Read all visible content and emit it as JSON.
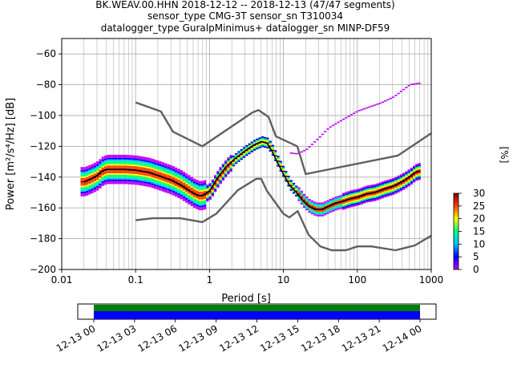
{
  "title_lines": [
    "BK.WEAV.00.HHN   2018-12-12 -- 2018-12-13  (47/47 segments)",
    "sensor_type CMG-3T sensor_sn T310034",
    "datalogger_type GuralpMinimus+ datalogger_sn MINP-DF59"
  ],
  "colors": {
    "model_lines": "#606060",
    "mode_line": "#000000",
    "grid": "#b0b0b0",
    "coverage_green": "#008000",
    "coverage_blue": "#0000ff",
    "colormap_stops": [
      "#ffffff",
      "#c000ff",
      "#0000ff",
      "#00c0ff",
      "#00ff80",
      "#ffff00",
      "#ff4000",
      "#800000"
    ]
  },
  "chart_data": [
    {
      "type": "heatmap",
      "xlabel": "Period [s]",
      "ylabel": "Power [m²/s⁴/Hz] [dB]",
      "x_scale": "log",
      "xlim": [
        0.01,
        1000
      ],
      "ylim": [
        -200,
        -50
      ],
      "x_ticks": [
        "0.01",
        "0.1",
        "1",
        "10",
        "100",
        "1000"
      ],
      "y_ticks": [
        "−200",
        "−180",
        "−160",
        "−140",
        "−120",
        "−100",
        "−80",
        "−60"
      ],
      "y_tick_values": [
        -200,
        -180,
        -160,
        -140,
        -120,
        -100,
        -80,
        -60
      ],
      "grid": true,
      "colorbar": {
        "label": "[%]",
        "range": [
          0,
          30
        ],
        "ticks": [
          "0",
          "5",
          "10",
          "15",
          "20",
          "25",
          "30"
        ],
        "tick_values": [
          0,
          5,
          10,
          15,
          20,
          25,
          30
        ]
      },
      "series": [
        {
          "role": "new-high-noise-model",
          "x": [
            0.1,
            0.22,
            0.32,
            0.8,
            3.8,
            4.6,
            6.3,
            7.9,
            15.4,
            20,
            354.8,
            1000
          ],
          "y": [
            -91.5,
            -97.4,
            -110.5,
            -120,
            -98,
            -96.5,
            -101,
            -113.5,
            -120,
            -138,
            -126,
            -111.5
          ]
        },
        {
          "role": "new-low-noise-model",
          "x": [
            0.1,
            0.17,
            0.4,
            0.8,
            1.24,
            2.4,
            4.3,
            5,
            6,
            10,
            12,
            15.6,
            21.9,
            31.6,
            45,
            70,
            101,
            154,
            328,
            600,
            1000
          ],
          "y": [
            -168,
            -166.7,
            -166.7,
            -169.2,
            -163.7,
            -148.6,
            -141.1,
            -141.1,
            -149,
            -163.8,
            -166.2,
            -162.1,
            -177.5,
            -185,
            -187.5,
            -187.5,
            -185,
            -185,
            -187.5,
            -184.4,
            -178
          ]
        },
        {
          "role": "mode",
          "x": [
            0.02,
            0.025,
            0.03,
            0.035,
            0.04,
            0.05,
            0.07,
            0.1,
            0.15,
            0.2,
            0.3,
            0.4,
            0.5,
            0.6,
            0.7,
            0.8,
            1,
            1.3,
            1.7,
            2.2,
            3,
            4,
            5,
            6,
            7,
            8,
            10,
            12,
            15,
            18,
            22,
            27,
            33,
            40,
            50,
            60,
            80,
            100,
            130,
            170,
            220,
            300,
            400,
            500,
            600,
            700
          ],
          "y": [
            -143,
            -141,
            -139,
            -136,
            -135,
            -135,
            -135,
            -135.5,
            -137,
            -139,
            -142,
            -145,
            -148,
            -150.5,
            -152,
            -152,
            -149,
            -140,
            -133,
            -128,
            -123,
            -119,
            -117,
            -118,
            -123,
            -129,
            -138,
            -145,
            -150,
            -155,
            -159,
            -161,
            -161,
            -159,
            -157,
            -156,
            -154,
            -153,
            -151,
            -150,
            -148,
            -146,
            -143,
            -140,
            -137,
            -136
          ]
        },
        {
          "role": "high-outlier-band",
          "x": [
            0.02,
            0.05,
            0.1,
            0.2,
            0.3,
            0.5,
            0.8,
            1,
            2,
            4,
            6,
            10,
            15,
            20,
            30,
            40,
            60,
            100,
            200,
            300,
            500,
            700
          ],
          "y": [
            -138,
            -133,
            -120,
            -127,
            -135,
            -140,
            -145,
            -143,
            -132,
            -122,
            -117,
            -124,
            -125,
            -122,
            -114,
            -108,
            -103,
            -97,
            -92,
            -88,
            -80,
            -79
          ]
        }
      ]
    },
    {
      "type": "bar",
      "role": "data-coverage",
      "x_ticks": [
        "12-13 00",
        "12-13 03",
        "12-13 06",
        "12-13 09",
        "12-13 12",
        "12-13 15",
        "12-13 18",
        "12-13 21",
        "12-14 00"
      ],
      "coverage_hours": [
        0,
        24
      ]
    }
  ]
}
